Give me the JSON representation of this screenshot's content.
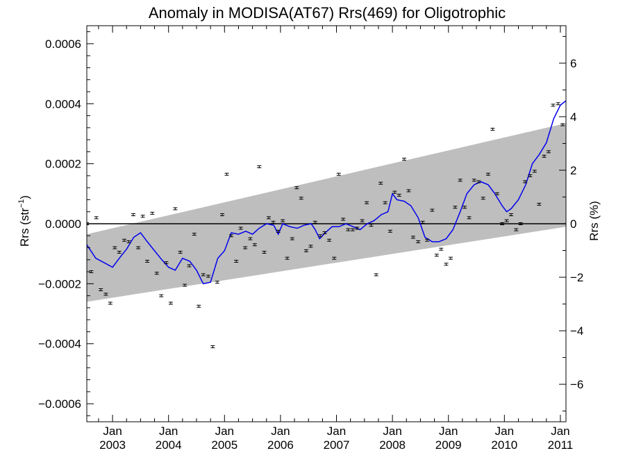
{
  "chart_data": {
    "type": "scatter",
    "title": "Anomaly in MODISA(AT67) Rrs(469) for Oligotrophic",
    "ylabel_left": {
      "base": "Rrs (str",
      "sup": "−1",
      "close": ")"
    },
    "ylabel_right": "Rrs (%)",
    "xlim": [
      2002.54,
      2011.1
    ],
    "ylim": [
      -0.00066,
      0.00066
    ],
    "ylim_right": [
      -7.4,
      7.4
    ],
    "left_ticks": [
      {
        "v": 0.0006,
        "label": "0.0006"
      },
      {
        "v": 0.0004,
        "label": "0.0004"
      },
      {
        "v": 0.0002,
        "label": "0.0002"
      },
      {
        "v": 0.0,
        "label": "0.0000"
      },
      {
        "v": -0.0002,
        "label": "−0.0002"
      },
      {
        "v": -0.0004,
        "label": "−0.0004"
      },
      {
        "v": -0.0006,
        "label": "−0.0006"
      }
    ],
    "right_ticks": [
      {
        "v": 6,
        "label": "6"
      },
      {
        "v": 4,
        "label": "4"
      },
      {
        "v": 2,
        "label": "2"
      },
      {
        "v": 0,
        "label": "0"
      },
      {
        "v": -2,
        "label": "−2"
      },
      {
        "v": -4,
        "label": "−4"
      },
      {
        "v": -6,
        "label": "−6"
      }
    ],
    "x_ticks": [
      {
        "v": 2003.0,
        "month": "Jan",
        "year": "2003"
      },
      {
        "v": 2004.0,
        "month": "Jan",
        "year": "2004"
      },
      {
        "v": 2005.0,
        "month": "Jan",
        "year": "2005"
      },
      {
        "v": 2006.0,
        "month": "Jan",
        "year": "2006"
      },
      {
        "v": 2007.0,
        "month": "Jan",
        "year": "2007"
      },
      {
        "v": 2008.0,
        "month": "Jan",
        "year": "2008"
      },
      {
        "v": 2009.0,
        "month": "Jan",
        "year": "2009"
      },
      {
        "v": 2010.0,
        "month": "Jan",
        "year": "2010"
      },
      {
        "v": 2011.0,
        "month": "Jan",
        "year": "2011"
      }
    ],
    "trend_band": {
      "start_x": 2002.54,
      "end_x": 2011.1,
      "upper_start": -3.5e-05,
      "upper_end": 0.000335,
      "lower_start": -0.00026,
      "lower_end": -1e-05
    },
    "zero_line": 0,
    "points": [
      [
        2002.54,
        0.0
      ],
      [
        2002.62,
        -0.00016
      ],
      [
        2002.71,
        2e-05
      ],
      [
        2002.79,
        -0.00022
      ],
      [
        2002.88,
        -0.000235
      ],
      [
        2002.96,
        -0.000265
      ],
      [
        2003.04,
        -8e-05
      ],
      [
        2003.12,
        -9.5e-05
      ],
      [
        2003.21,
        -5.5e-05
      ],
      [
        2003.29,
        -6e-05
      ],
      [
        2003.37,
        3e-05
      ],
      [
        2003.46,
        -8e-05
      ],
      [
        2003.54,
        2.5e-05
      ],
      [
        2003.62,
        -0.000125
      ],
      [
        2003.71,
        3.5e-05
      ],
      [
        2003.79,
        -0.000165
      ],
      [
        2003.87,
        -0.00024
      ],
      [
        2003.96,
        -0.00013
      ],
      [
        2004.04,
        -0.000265
      ],
      [
        2004.12,
        5e-05
      ],
      [
        2004.21,
        -9.5e-05
      ],
      [
        2004.29,
        -0.000205
      ],
      [
        2004.37,
        -0.00014
      ],
      [
        2004.46,
        -3.5e-05
      ],
      [
        2004.54,
        -0.000275
      ],
      [
        2004.62,
        -0.00017
      ],
      [
        2004.71,
        -0.000175
      ],
      [
        2004.79,
        -0.00041
      ],
      [
        2004.87,
        -0.000195
      ],
      [
        2004.96,
        3e-05
      ],
      [
        2005.04,
        0.000165
      ],
      [
        2005.12,
        -4e-05
      ],
      [
        2005.21,
        -0.000125
      ],
      [
        2005.29,
        -1.5e-05
      ],
      [
        2005.37,
        -8e-05
      ],
      [
        2005.46,
        -5e-05
      ],
      [
        2005.54,
        -7e-05
      ],
      [
        2005.62,
        0.00019
      ],
      [
        2005.71,
        -9.5e-05
      ],
      [
        2005.79,
        2e-05
      ],
      [
        2005.87,
        5e-06
      ],
      [
        2005.96,
        -2.5e-05
      ],
      [
        2006.04,
        1e-05
      ],
      [
        2006.12,
        -0.000115
      ],
      [
        2006.21,
        -5e-05
      ],
      [
        2006.29,
        0.00012
      ],
      [
        2006.37,
        8.5e-05
      ],
      [
        2006.46,
        -9e-05
      ],
      [
        2006.54,
        -7.5e-05
      ],
      [
        2006.62,
        5e-06
      ],
      [
        2006.71,
        -4e-05
      ],
      [
        2006.79,
        -3e-05
      ],
      [
        2006.87,
        -5.5e-05
      ],
      [
        2006.96,
        -0.000115
      ],
      [
        2007.04,
        0.000165
      ],
      [
        2007.12,
        1.5e-05
      ],
      [
        2007.21,
        -2e-05
      ],
      [
        2007.29,
        -2e-05
      ],
      [
        2007.37,
        -1.5e-05
      ],
      [
        2007.46,
        1e-05
      ],
      [
        2007.54,
        7e-05
      ],
      [
        2007.62,
        -5e-06
      ],
      [
        2007.71,
        -0.00017
      ],
      [
        2007.79,
        0.000135
      ],
      [
        2007.87,
        7e-05
      ],
      [
        2007.96,
        -2.5e-05
      ],
      [
        2008.04,
        0.000105
      ],
      [
        2008.12,
        9.5e-05
      ],
      [
        2008.21,
        0.000215
      ],
      [
        2008.29,
        0.00011
      ],
      [
        2008.37,
        -4.5e-05
      ],
      [
        2008.46,
        -6e-05
      ],
      [
        2008.54,
        5e-06
      ],
      [
        2008.62,
        -5.5e-05
      ],
      [
        2008.71,
        4.5e-05
      ],
      [
        2008.79,
        -0.000105
      ],
      [
        2008.87,
        -8.5e-05
      ],
      [
        2008.96,
        -0.000135
      ],
      [
        2009.04,
        -0.000115
      ],
      [
        2009.12,
        5.5e-05
      ],
      [
        2009.21,
        0.000145
      ],
      [
        2009.29,
        5.5e-05
      ],
      [
        2009.37,
        2e-05
      ],
      [
        2009.46,
        0.000145
      ],
      [
        2009.54,
        0.00014
      ],
      [
        2009.62,
        8.5e-05
      ],
      [
        2009.71,
        0.000165
      ],
      [
        2009.79,
        0.000315
      ],
      [
        2009.87,
        0.0001
      ],
      [
        2009.96,
        0.0
      ],
      [
        2010.04,
        1e-05
      ],
      [
        2010.12,
        3e-05
      ],
      [
        2010.21,
        -2e-05
      ],
      [
        2010.29,
        0.0
      ],
      [
        2010.37,
        0.00014
      ],
      [
        2010.46,
        0.00016
      ],
      [
        2010.54,
        0.000175
      ],
      [
        2010.62,
        6.5e-05
      ],
      [
        2010.71,
        0.000225
      ],
      [
        2010.79,
        0.00024
      ],
      [
        2010.87,
        0.000395
      ],
      [
        2010.96,
        0.0004
      ],
      [
        2011.04,
        0.00033
      ]
    ],
    "running_mean": [
      [
        2002.54,
        -7e-05
      ],
      [
        2002.7,
        -0.000115
      ],
      [
        2002.85,
        -0.00013
      ],
      [
        2003.0,
        -0.000145
      ],
      [
        2003.12,
        -0.000115
      ],
      [
        2003.25,
        -8.5e-05
      ],
      [
        2003.38,
        -4.5e-05
      ],
      [
        2003.5,
        -3e-05
      ],
      [
        2003.62,
        -6e-05
      ],
      [
        2003.75,
        -9e-05
      ],
      [
        2003.88,
        -0.00012
      ],
      [
        2004.0,
        -0.000145
      ],
      [
        2004.12,
        -0.000155
      ],
      [
        2004.25,
        -0.000115
      ],
      [
        2004.38,
        -0.000125
      ],
      [
        2004.5,
        -0.000155
      ],
      [
        2004.62,
        -0.0002
      ],
      [
        2004.75,
        -0.000195
      ],
      [
        2004.88,
        -0.000115
      ],
      [
        2005.0,
        -9e-05
      ],
      [
        2005.12,
        -3e-05
      ],
      [
        2005.25,
        -3.5e-05
      ],
      [
        2005.38,
        -2.5e-05
      ],
      [
        2005.5,
        -3.5e-05
      ],
      [
        2005.62,
        -1.5e-05
      ],
      [
        2005.75,
        0.0
      ],
      [
        2005.88,
        -5e-06
      ],
      [
        2005.96,
        -3.5e-05
      ],
      [
        2006.04,
        0.0
      ],
      [
        2006.17,
        -1e-05
      ],
      [
        2006.3,
        -1.5e-05
      ],
      [
        2006.42,
        -5e-06
      ],
      [
        2006.55,
        0.0
      ],
      [
        2006.62,
        -2e-05
      ],
      [
        2006.7,
        -5e-05
      ],
      [
        2006.8,
        -3e-05
      ],
      [
        2006.92,
        -1e-05
      ],
      [
        2007.04,
        -1e-05
      ],
      [
        2007.17,
        0.0
      ],
      [
        2007.3,
        -1e-05
      ],
      [
        2007.42,
        -2e-05
      ],
      [
        2007.55,
        0.0
      ],
      [
        2007.67,
        1e-05
      ],
      [
        2007.8,
        3e-05
      ],
      [
        2007.92,
        4e-05
      ],
      [
        2008.0,
        0.0001
      ],
      [
        2008.08,
        8e-05
      ],
      [
        2008.21,
        7.5e-05
      ],
      [
        2008.33,
        6e-05
      ],
      [
        2008.46,
        2e-05
      ],
      [
        2008.58,
        -4.5e-05
      ],
      [
        2008.71,
        -6e-05
      ],
      [
        2008.83,
        -6e-05
      ],
      [
        2008.96,
        -5e-05
      ],
      [
        2009.08,
        -2e-05
      ],
      [
        2009.21,
        4e-05
      ],
      [
        2009.33,
        0.0001
      ],
      [
        2009.46,
        0.00013
      ],
      [
        2009.58,
        0.00014
      ],
      [
        2009.71,
        0.00013
      ],
      [
        2009.83,
        0.0001
      ],
      [
        2009.96,
        6e-05
      ],
      [
        2010.04,
        4e-05
      ],
      [
        2010.12,
        5e-05
      ],
      [
        2010.25,
        8e-05
      ],
      [
        2010.38,
        0.00013
      ],
      [
        2010.5,
        0.0002
      ],
      [
        2010.62,
        0.00023
      ],
      [
        2010.75,
        0.00027
      ],
      [
        2010.88,
        0.00035
      ],
      [
        2011.0,
        0.000395
      ],
      [
        2011.1,
        0.00041
      ]
    ],
    "colors": {
      "band": "#bebebe",
      "line": "#0000ee",
      "points": "#000000",
      "axes": "#000000"
    },
    "grid": false
  }
}
